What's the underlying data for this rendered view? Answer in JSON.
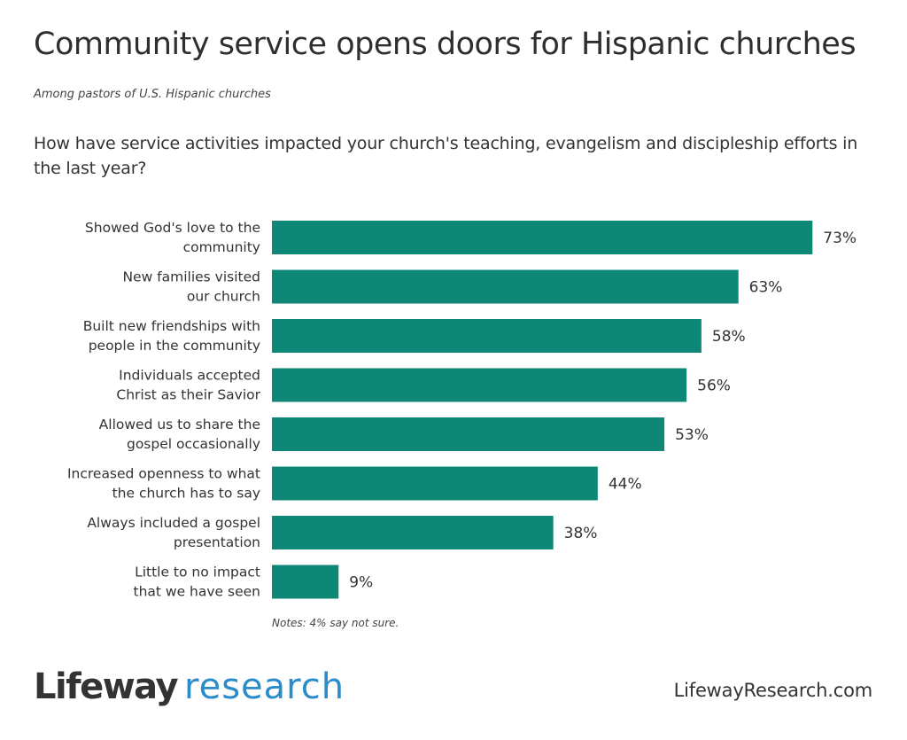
{
  "header": {
    "title": "Community service opens doors for Hispanic churches",
    "subtitle": "Among pastors of U.S. Hispanic churches",
    "question": "How have service activities impacted your church's teaching, evangelism and discipleship efforts in the last year?"
  },
  "colors": {
    "bar": "#0e8777",
    "logo_dark": "#333333",
    "logo_blue": "#2b8ccb"
  },
  "chart_data": {
    "type": "bar",
    "orientation": "horizontal",
    "title": "Community service opens doors for Hispanic churches",
    "subtitle": "Among pastors of U.S. Hispanic churches",
    "xlabel": "",
    "ylabel": "",
    "xlim": [
      0,
      100
    ],
    "grid": false,
    "unit": "%",
    "categories": [
      [
        "Showed God's love to the",
        "community"
      ],
      [
        "New families visited",
        "our church"
      ],
      [
        "Built new friendships with",
        "people in the community"
      ],
      [
        "Individuals accepted",
        "Christ as their Savior"
      ],
      [
        "Allowed us to share the",
        "gospel occasionally"
      ],
      [
        "Increased openness to what",
        "the church has to say"
      ],
      [
        "Always included a gospel",
        "presentation"
      ],
      [
        "Little to no impact",
        "that we have seen"
      ]
    ],
    "values": [
      73,
      63,
      58,
      56,
      53,
      44,
      38,
      9
    ],
    "labels": [
      "73%",
      "63%",
      "58%",
      "56%",
      "53%",
      "44%",
      "38%",
      "9%"
    ]
  },
  "notes": "Notes: 4% say not sure.",
  "footer": {
    "logo_part1": "Lifeway",
    "logo_part2": "research",
    "website": "LifewayResearch.com"
  }
}
